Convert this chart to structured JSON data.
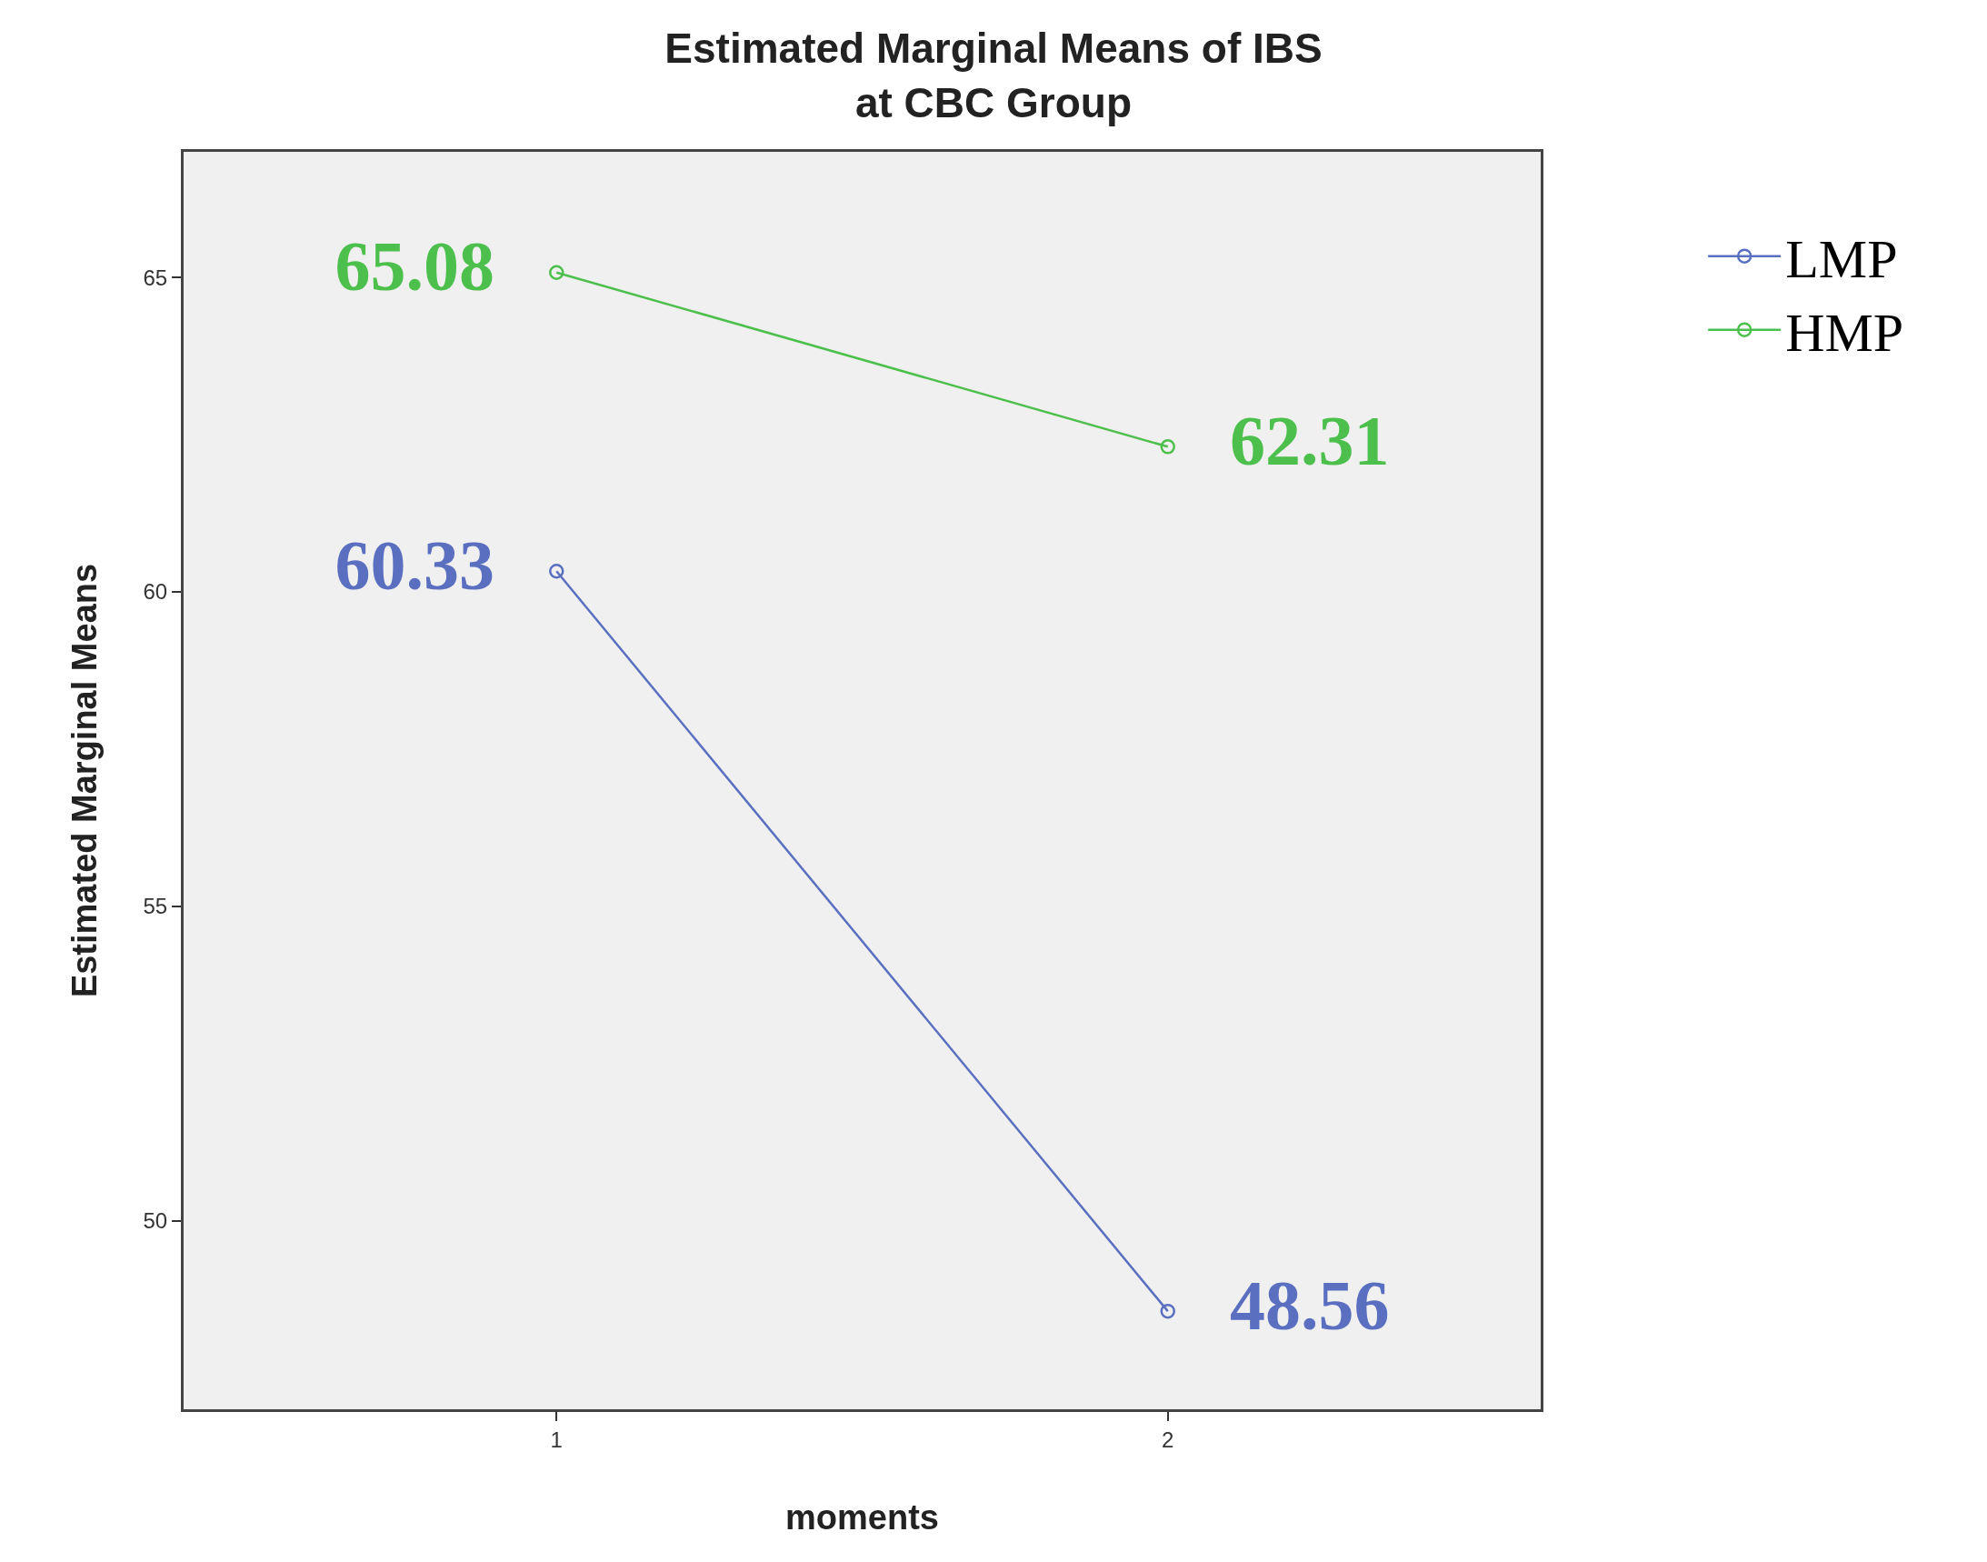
{
  "chart_data": {
    "type": "line",
    "title": "Estimated Marginal Means of IBS\nat CBC Group",
    "xlabel": "moments",
    "ylabel": "Estimated Marginal Means",
    "x": [
      1,
      2
    ],
    "series": [
      {
        "name": "LMP",
        "color": "#5a6fc0",
        "values": [
          60.33,
          48.56
        ],
        "value_labels": [
          "60.33",
          "48.56"
        ]
      },
      {
        "name": "HMP",
        "color": "#4cbf4c",
        "values": [
          65.08,
          62.31
        ],
        "value_labels": [
          "65.08",
          "62.31"
        ]
      }
    ],
    "xlim": [
      0.39,
      2.61
    ],
    "xticks": [
      1,
      2
    ],
    "ylim": [
      47,
      67
    ],
    "yticks": [
      50,
      55,
      60,
      65
    ],
    "marker": "circle",
    "line_style": "solid",
    "grid": false,
    "legend": "right"
  }
}
